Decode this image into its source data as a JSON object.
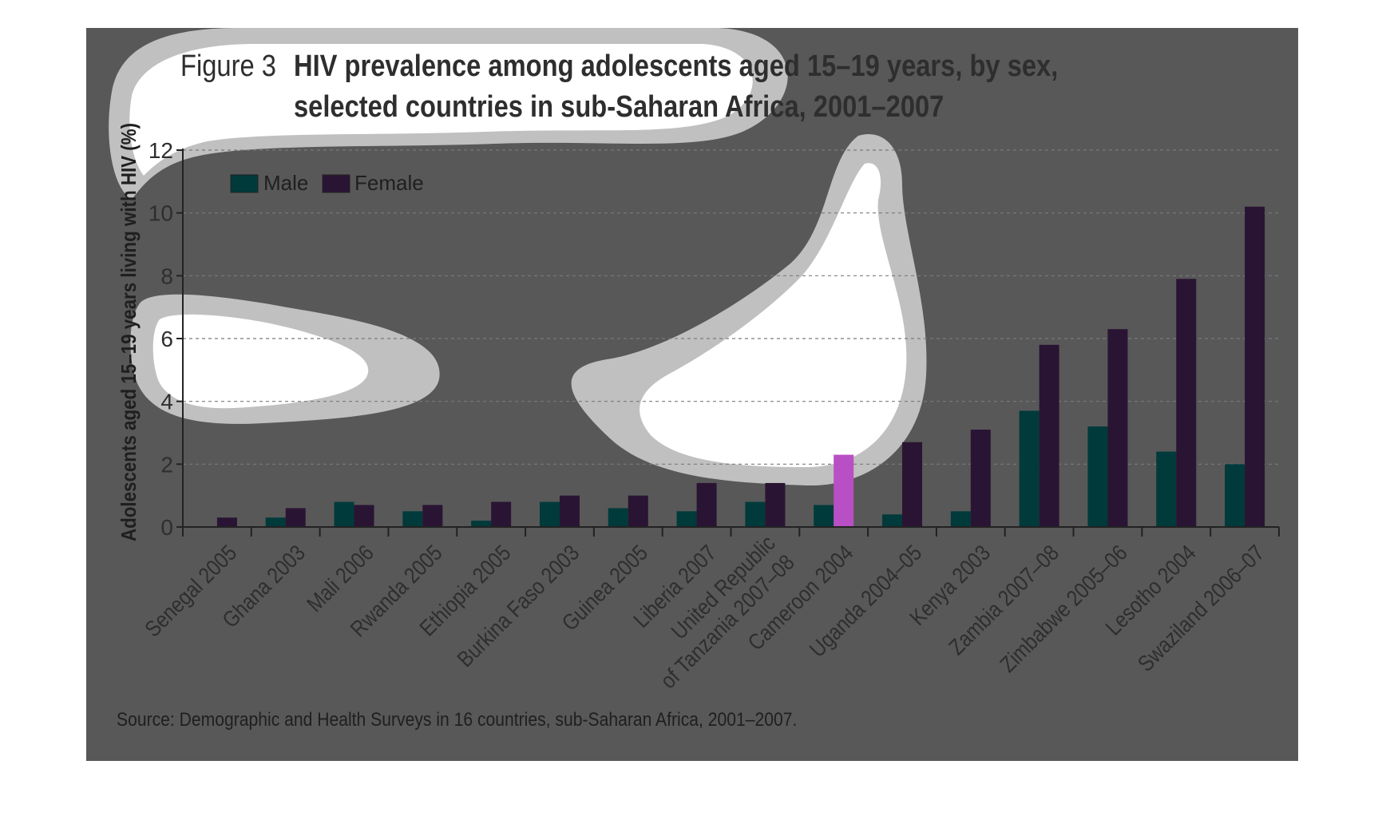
{
  "colors": {
    "panel": "#585858",
    "male": "#003a3a",
    "female": "#2a1433",
    "highlight": "#b94fc4",
    "text": "#2e2e2e",
    "axis": "#222222",
    "grid": "#7a7a7a"
  },
  "figure": {
    "prefix": "Figure 3",
    "title_line_1": "HIV prevalence among adolescents aged 15–19 years, by sex,",
    "title_line_2": "selected countries in sub-Saharan Africa, 2001–2007",
    "source": "Source: Demographic and Health Surveys in 16 countries, sub-Saharan Africa, 2001–2007."
  },
  "chart_data": {
    "type": "bar",
    "title": "HIV prevalence among adolescents aged 15–19 years, by sex, selected countries in sub-Saharan Africa, 2001–2007",
    "xlabel": "",
    "ylabel": "Adolescents aged 15–19 years living with HIV (%)",
    "ylim": [
      0,
      12
    ],
    "yticks": [
      0,
      2,
      4,
      6,
      8,
      10,
      12
    ],
    "grid": true,
    "legend_position": "top-left",
    "categories": [
      "Senegal 2005",
      "Ghana 2003",
      "Mali 2006",
      "Rwanda 2005",
      "Ethiopia 2005",
      "Burkina Faso 2003",
      "Guinea 2005",
      "Liberia 2007",
      "United Republic of Tanzania 2007–08",
      "Cameroon 2004",
      "Uganda 2004–05",
      "Kenya 2003",
      "Zambia 2007–08",
      "Zimbabwe 2005–06",
      "Lesotho 2004",
      "Swaziland 2006–07"
    ],
    "category_lines": [
      [
        "Senegal 2005"
      ],
      [
        "Ghana 2003"
      ],
      [
        "Mali 2006"
      ],
      [
        "Rwanda 2005"
      ],
      [
        "Ethiopia 2005"
      ],
      [
        "Burkina Faso 2003"
      ],
      [
        "Guinea 2005"
      ],
      [
        "Liberia 2007"
      ],
      [
        "United Republic",
        "of Tanzania 2007–08"
      ],
      [
        "Cameroon 2004"
      ],
      [
        "Uganda 2004–05"
      ],
      [
        "Kenya 2003"
      ],
      [
        "Zambia 2007–08"
      ],
      [
        "Zimbabwe 2005–06"
      ],
      [
        "Lesotho 2004"
      ],
      [
        "Swaziland 2006–07"
      ]
    ],
    "series": [
      {
        "name": "Male",
        "values": [
          0.0,
          0.3,
          0.8,
          0.5,
          0.2,
          0.8,
          0.6,
          0.5,
          0.8,
          0.7,
          0.4,
          0.5,
          3.7,
          3.2,
          2.4,
          2.0
        ]
      },
      {
        "name": "Female",
        "values": [
          0.3,
          0.6,
          0.7,
          0.7,
          0.8,
          1.0,
          1.0,
          1.4,
          1.4,
          2.3,
          2.7,
          3.1,
          5.8,
          6.3,
          7.9,
          10.2
        ]
      }
    ],
    "highlighted": {
      "series": "Female",
      "category": "Cameroon 2004"
    }
  }
}
